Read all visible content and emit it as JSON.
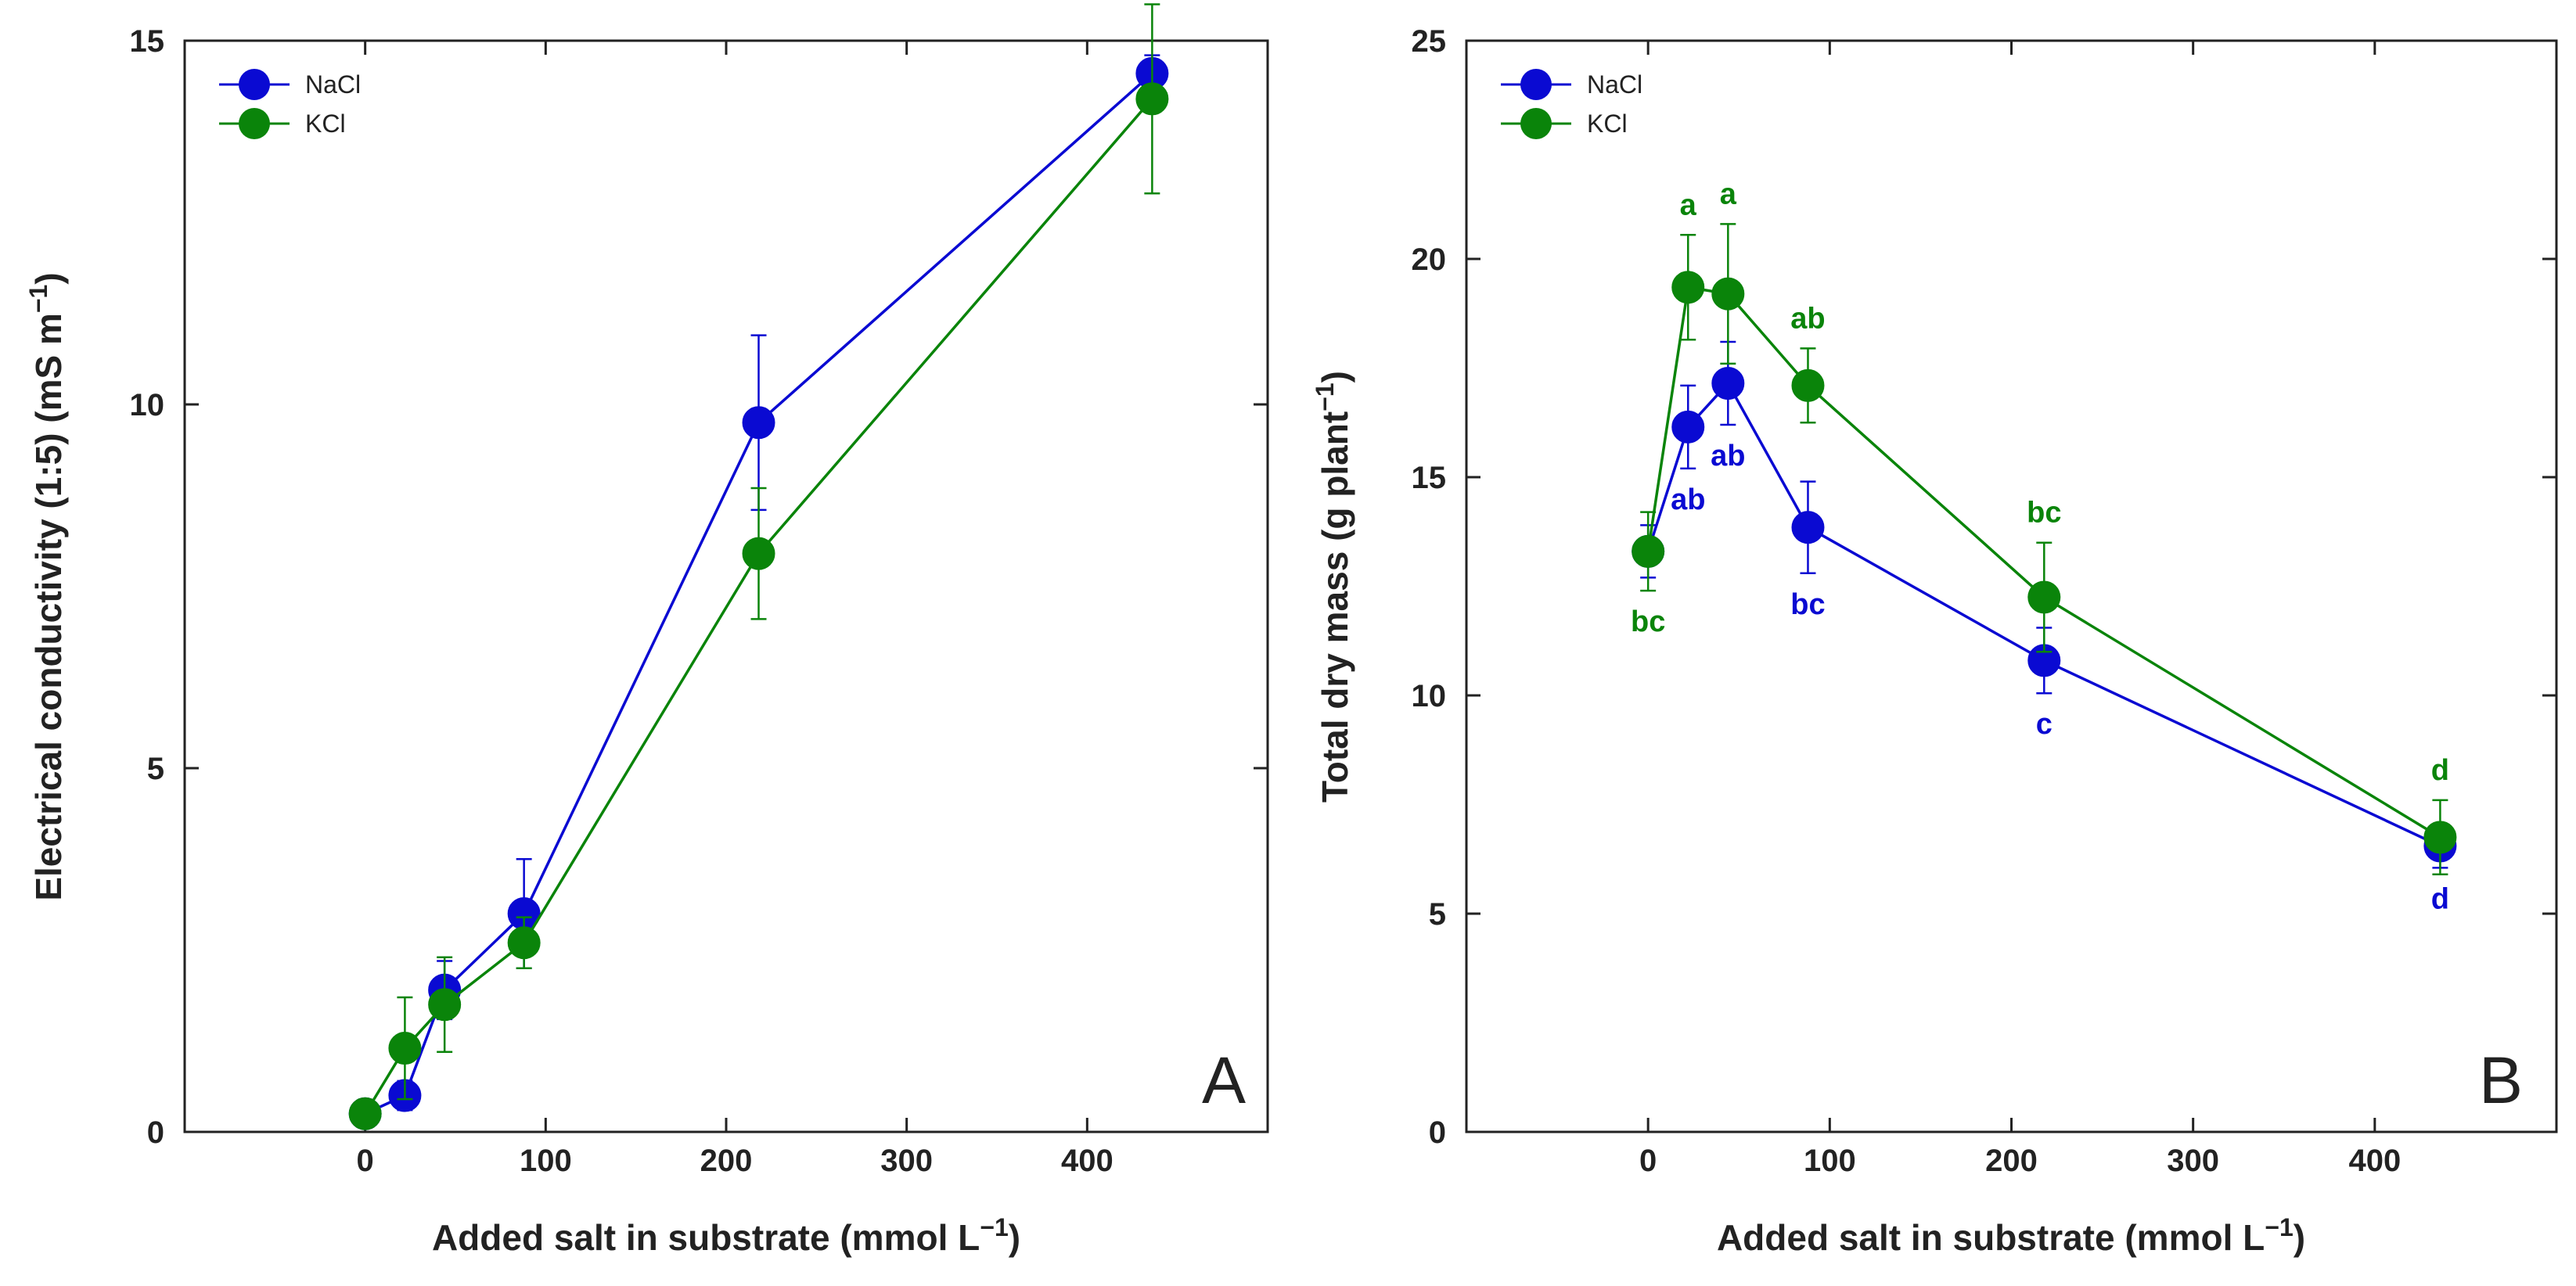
{
  "chart_data": [
    {
      "panel_label": "A",
      "type": "line",
      "xlabel": "Added salt in substrate (mmol L",
      "xlabel_sup": "−1",
      "xlabel_tail": ")",
      "ylabel": "Electrical conductivity (1:5) (mS m",
      "ylabel_sup": "−1",
      "ylabel_tail": ")",
      "xlim": [
        -100,
        500
      ],
      "ylim": [
        0,
        15
      ],
      "xticks": [
        0,
        100,
        200,
        300,
        400
      ],
      "yticks": [
        0,
        5,
        10,
        15
      ],
      "legend_position": "top-left",
      "series": [
        {
          "name": "NaCl",
          "color": "#0a0ad2",
          "x": [
            0,
            22,
            44,
            88,
            218,
            436
          ],
          "y": [
            0.25,
            0.5,
            1.95,
            3.0,
            9.75,
            14.55
          ],
          "err": [
            0.05,
            0.2,
            0.4,
            0.75,
            1.2,
            0.25
          ],
          "labels": [
            "",
            "",
            "",
            "",
            "",
            ""
          ]
        },
        {
          "name": "KCl",
          "color": "#0a840a",
          "x": [
            0,
            22,
            44,
            88,
            218,
            436
          ],
          "y": [
            0.25,
            1.15,
            1.75,
            2.6,
            7.95,
            14.2
          ],
          "err": [
            0.05,
            0.7,
            0.65,
            0.35,
            0.9,
            1.3
          ],
          "labels": [
            "",
            "",
            "",
            "",
            "",
            ""
          ]
        }
      ]
    },
    {
      "panel_label": "B",
      "type": "line",
      "xlabel": "Added salt in substrate (mmol L",
      "xlabel_sup": "−1",
      "xlabel_tail": ")",
      "ylabel": "Total dry mass (g plant",
      "ylabel_sup": "−1",
      "ylabel_tail": ")",
      "xlim": [
        -100,
        500
      ],
      "ylim": [
        0,
        25
      ],
      "xticks": [
        0,
        100,
        200,
        300,
        400
      ],
      "yticks": [
        0,
        5,
        10,
        15,
        20,
        25
      ],
      "legend_position": "top-left",
      "series": [
        {
          "name": "NaCl",
          "color": "#0a0ad2",
          "x": [
            0,
            22,
            44,
            88,
            218,
            436
          ],
          "y": [
            13.3,
            16.15,
            17.15,
            13.85,
            10.8,
            6.55
          ],
          "err": [
            0.6,
            0.95,
            0.95,
            1.05,
            0.75,
            0.5
          ],
          "labels": [
            "",
            "ab",
            "ab",
            "bc",
            "c",
            "d"
          ],
          "label_side": "below"
        },
        {
          "name": "KCl",
          "color": "#0a840a",
          "x": [
            0,
            22,
            44,
            88,
            218,
            436
          ],
          "y": [
            13.3,
            19.35,
            19.2,
            17.1,
            12.25,
            6.75
          ],
          "err": [
            0.9,
            1.2,
            1.6,
            0.85,
            1.25,
            0.85
          ],
          "labels": [
            "bc",
            "a",
            "a",
            "ab",
            "bc",
            "d"
          ],
          "label_side": "above",
          "first_label_side": "below"
        }
      ]
    }
  ]
}
